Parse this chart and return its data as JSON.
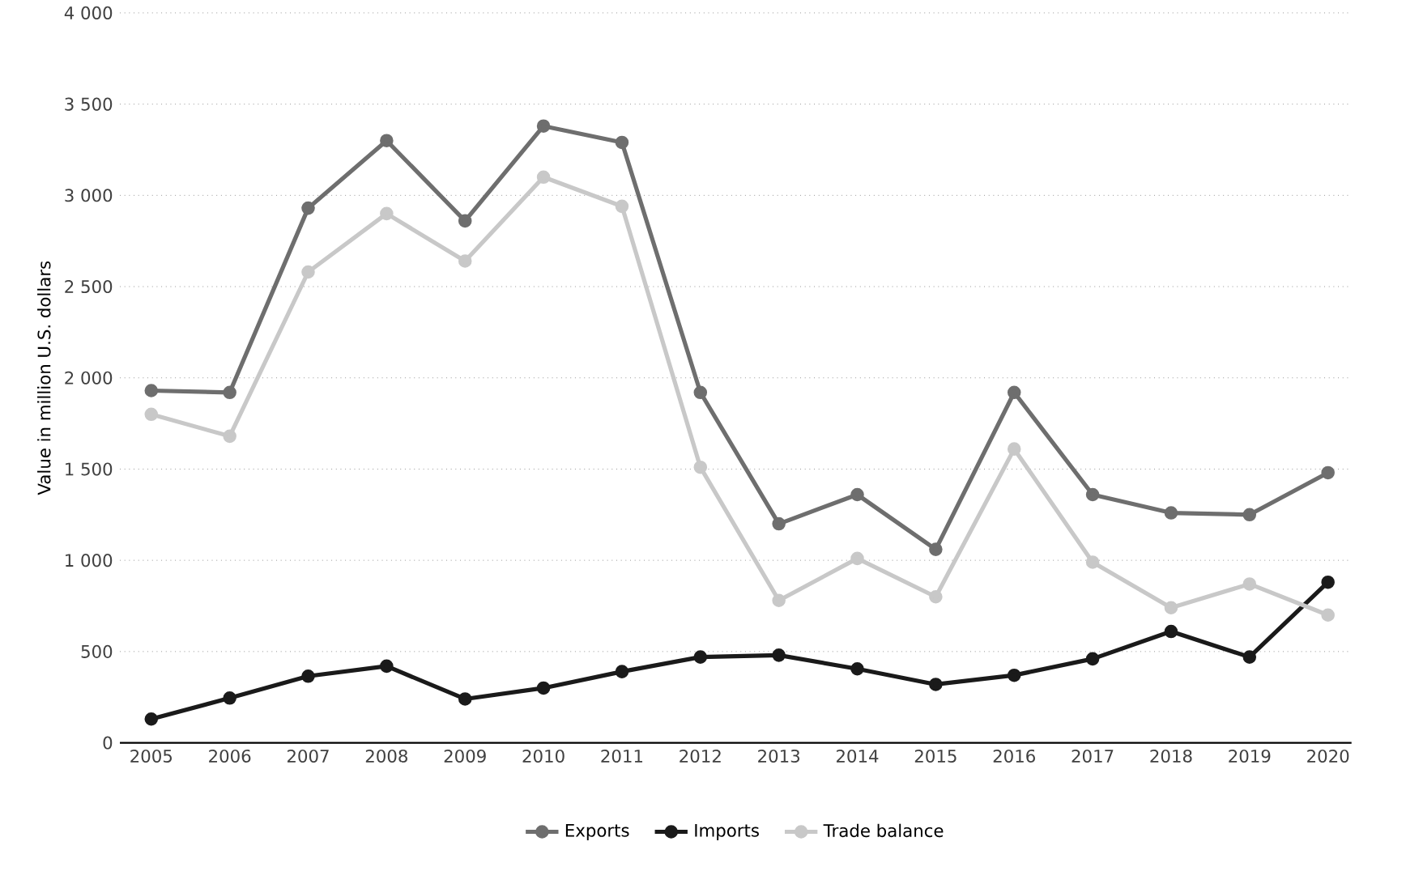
{
  "chart_data": {
    "type": "line",
    "ylabel": "Value in million U.S. dollars",
    "categories": [
      "2005",
      "2006",
      "2007",
      "2008",
      "2009",
      "2010",
      "2011",
      "2012",
      "2013",
      "2014",
      "2015",
      "2016",
      "2017",
      "2018",
      "2019",
      "2020"
    ],
    "series": [
      {
        "name": "Exports",
        "color": "#6e6e6e",
        "values": [
          1930,
          1920,
          2930,
          3300,
          2860,
          3380,
          3290,
          1920,
          1200,
          1360,
          1060,
          1920,
          1360,
          1260,
          1250,
          1480
        ]
      },
      {
        "name": "Imports",
        "color": "#1a1a1a",
        "values": [
          130,
          245,
          365,
          420,
          240,
          300,
          390,
          470,
          480,
          405,
          320,
          370,
          460,
          610,
          470,
          880
        ]
      },
      {
        "name": "Trade balance",
        "color": "#c8c8c8",
        "values": [
          1800,
          1680,
          2580,
          2900,
          2640,
          3100,
          2940,
          1510,
          780,
          1010,
          800,
          1610,
          990,
          740,
          870,
          700
        ]
      }
    ],
    "ylim": [
      0,
      4000
    ],
    "yticks": [
      {
        "value": 0,
        "label": "0"
      },
      {
        "value": 500,
        "label": "500"
      },
      {
        "value": 1000,
        "label": "1 000"
      },
      {
        "value": 1500,
        "label": "1 500"
      },
      {
        "value": 2000,
        "label": "2 000"
      },
      {
        "value": 2500,
        "label": "2 500"
      },
      {
        "value": 3000,
        "label": "3 000"
      },
      {
        "value": 3500,
        "label": "3 500"
      },
      {
        "value": 4000,
        "label": "4 000"
      }
    ],
    "grid": "y",
    "legend": "bottom",
    "marker": "circle",
    "line_style": "solid"
  }
}
